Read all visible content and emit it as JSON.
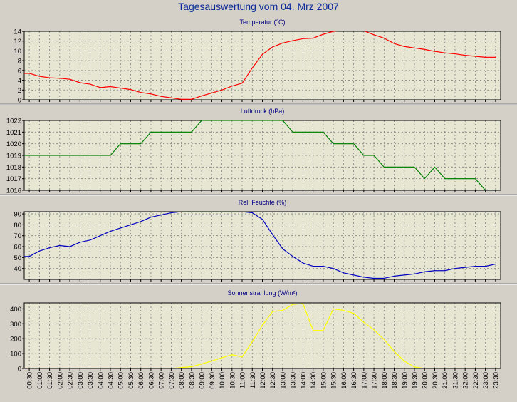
{
  "page": {
    "title": "Tagesauswertung vom 04. Mrz 2007"
  },
  "colors": {
    "background": "#d4d0c8",
    "plot": "#e6e6d2",
    "grid": "#7f7f7f"
  },
  "x_labels": [
    "00:30",
    "01:00",
    "01:30",
    "02:00",
    "02:30",
    "03:00",
    "03:30",
    "04:00",
    "04:30",
    "05:00",
    "05:30",
    "06:00",
    "06:30",
    "07:00",
    "07:30",
    "08:00",
    "08:30",
    "09:00",
    "09:30",
    "10:00",
    "10:30",
    "11:00",
    "11:30",
    "12:00",
    "12:30",
    "13:00",
    "13:30",
    "14:00",
    "14:30",
    "15:00",
    "15:30",
    "16:00",
    "16:30",
    "17:00",
    "17:30",
    "18:00",
    "18:30",
    "19:00",
    "19:30",
    "20:00",
    "20:30",
    "21:00",
    "21:30",
    "22:00",
    "22:30",
    "23:00",
    "23:30"
  ],
  "chart_data": [
    {
      "type": "line",
      "title": "Temperatur (°C)",
      "color": "#ff0000",
      "ylim": [
        0,
        14
      ],
      "yticks": [
        0,
        2,
        4,
        6,
        8,
        10,
        12,
        14
      ],
      "grid": true,
      "values": [
        5.4,
        4.8,
        4.5,
        4.4,
        4.2,
        3.5,
        3.2,
        2.5,
        2.7,
        2.4,
        2.1,
        1.5,
        1.2,
        0.7,
        0.4,
        0.1,
        0.1,
        0.8,
        1.4,
        2.0,
        2.8,
        3.4,
        6.5,
        9.3,
        10.8,
        11.6,
        12.1,
        12.5,
        12.6,
        13.4,
        14.0,
        14.2,
        14.3,
        14.1,
        13.3,
        12.6,
        11.5,
        10.9,
        10.6,
        10.3,
        9.9,
        9.6,
        9.4,
        9.1,
        8.9,
        8.7,
        8.7
      ]
    },
    {
      "type": "line",
      "title": "Luftdruck (hPa)",
      "color": "#008000",
      "ylim": [
        1016,
        1022
      ],
      "yticks": [
        1016,
        1017,
        1018,
        1019,
        1020,
        1021,
        1022
      ],
      "grid": true,
      "values": [
        1019,
        1019,
        1019,
        1019,
        1019,
        1019,
        1019,
        1019,
        1019,
        1020,
        1020,
        1020,
        1021,
        1021,
        1021,
        1021,
        1021,
        1022,
        1022,
        1022,
        1022,
        1022,
        1022,
        1022,
        1022,
        1022,
        1021,
        1021,
        1021,
        1021,
        1020,
        1020,
        1020,
        1019,
        1019,
        1018,
        1018,
        1018,
        1018,
        1017,
        1018,
        1017,
        1017,
        1017,
        1017,
        1016,
        1016
      ]
    },
    {
      "type": "line",
      "title": "Rel. Feuchte (%)",
      "color": "#0000c0",
      "ylim": [
        30,
        92
      ],
      "yticks": [
        40,
        50,
        60,
        70,
        80,
        90
      ],
      "grid": true,
      "values": [
        51,
        56,
        59,
        61,
        60,
        64,
        66,
        70,
        74,
        77,
        80,
        83,
        87,
        89,
        91,
        92,
        92,
        92,
        92,
        92,
        92,
        92,
        91,
        85,
        71,
        58,
        51,
        45,
        42,
        42,
        40,
        36,
        34,
        32,
        31,
        31,
        33,
        34,
        35,
        37,
        38,
        38,
        40,
        41,
        42,
        42,
        44
      ]
    },
    {
      "type": "line",
      "title": "Sonnenstrahlung (W/m²)",
      "color": "#ffff00",
      "ylim": [
        0,
        440
      ],
      "yticks": [
        0,
        100,
        200,
        300,
        400
      ],
      "grid": true,
      "values": [
        0,
        0,
        0,
        0,
        0,
        0,
        0,
        0,
        0,
        0,
        0,
        0,
        0,
        0,
        0,
        6,
        12,
        30,
        50,
        72,
        92,
        78,
        180,
        290,
        382,
        390,
        430,
        435,
        255,
        255,
        400,
        390,
        370,
        310,
        260,
        195,
        115,
        50,
        10,
        0,
        0,
        0,
        0,
        0,
        0,
        0,
        0
      ]
    }
  ]
}
